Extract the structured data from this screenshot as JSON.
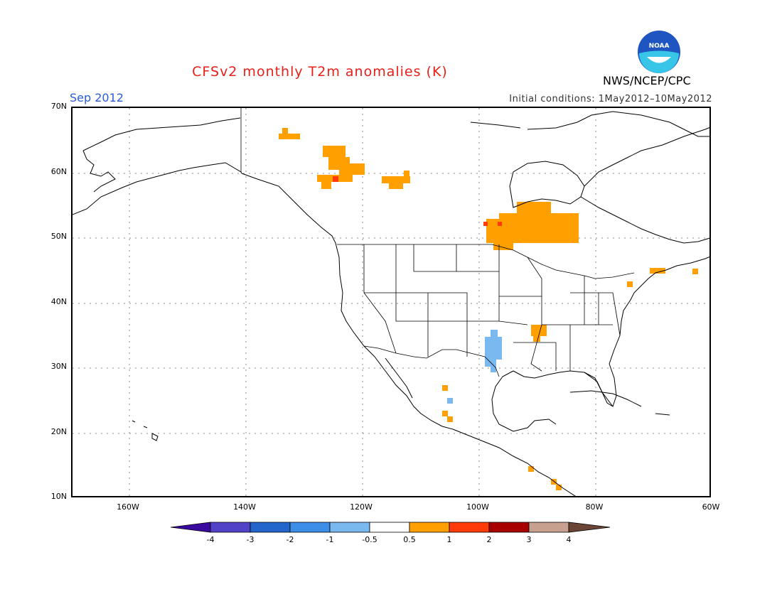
{
  "header": {
    "title": "CFSv2 monthly T2m anomalies (K)",
    "month": "Sep 2012",
    "initial_conditions": "Initial conditions: 1May2012–10May2012",
    "org": "NWS/NCEP/CPC",
    "logo_text": "NOAA"
  },
  "map": {
    "lat_labels": [
      "70N",
      "60N",
      "50N",
      "40N",
      "30N",
      "20N",
      "10N"
    ],
    "lon_labels": [
      "160W",
      "140W",
      "120W",
      "100W",
      "80W",
      "60W"
    ]
  },
  "colorbar": {
    "labels": [
      "-4",
      "-3",
      "-2",
      "-1",
      "-0.5",
      "0.5",
      "1",
      "2",
      "3",
      "4"
    ],
    "colors": [
      "#3a0aa0",
      "#5142c8",
      "#2266cc",
      "#3d8ee6",
      "#7ab8f0",
      "#ffffff",
      "#ff9f00",
      "#ff3b0a",
      "#a80000",
      "#c8a08f",
      "#6b4636"
    ]
  }
}
